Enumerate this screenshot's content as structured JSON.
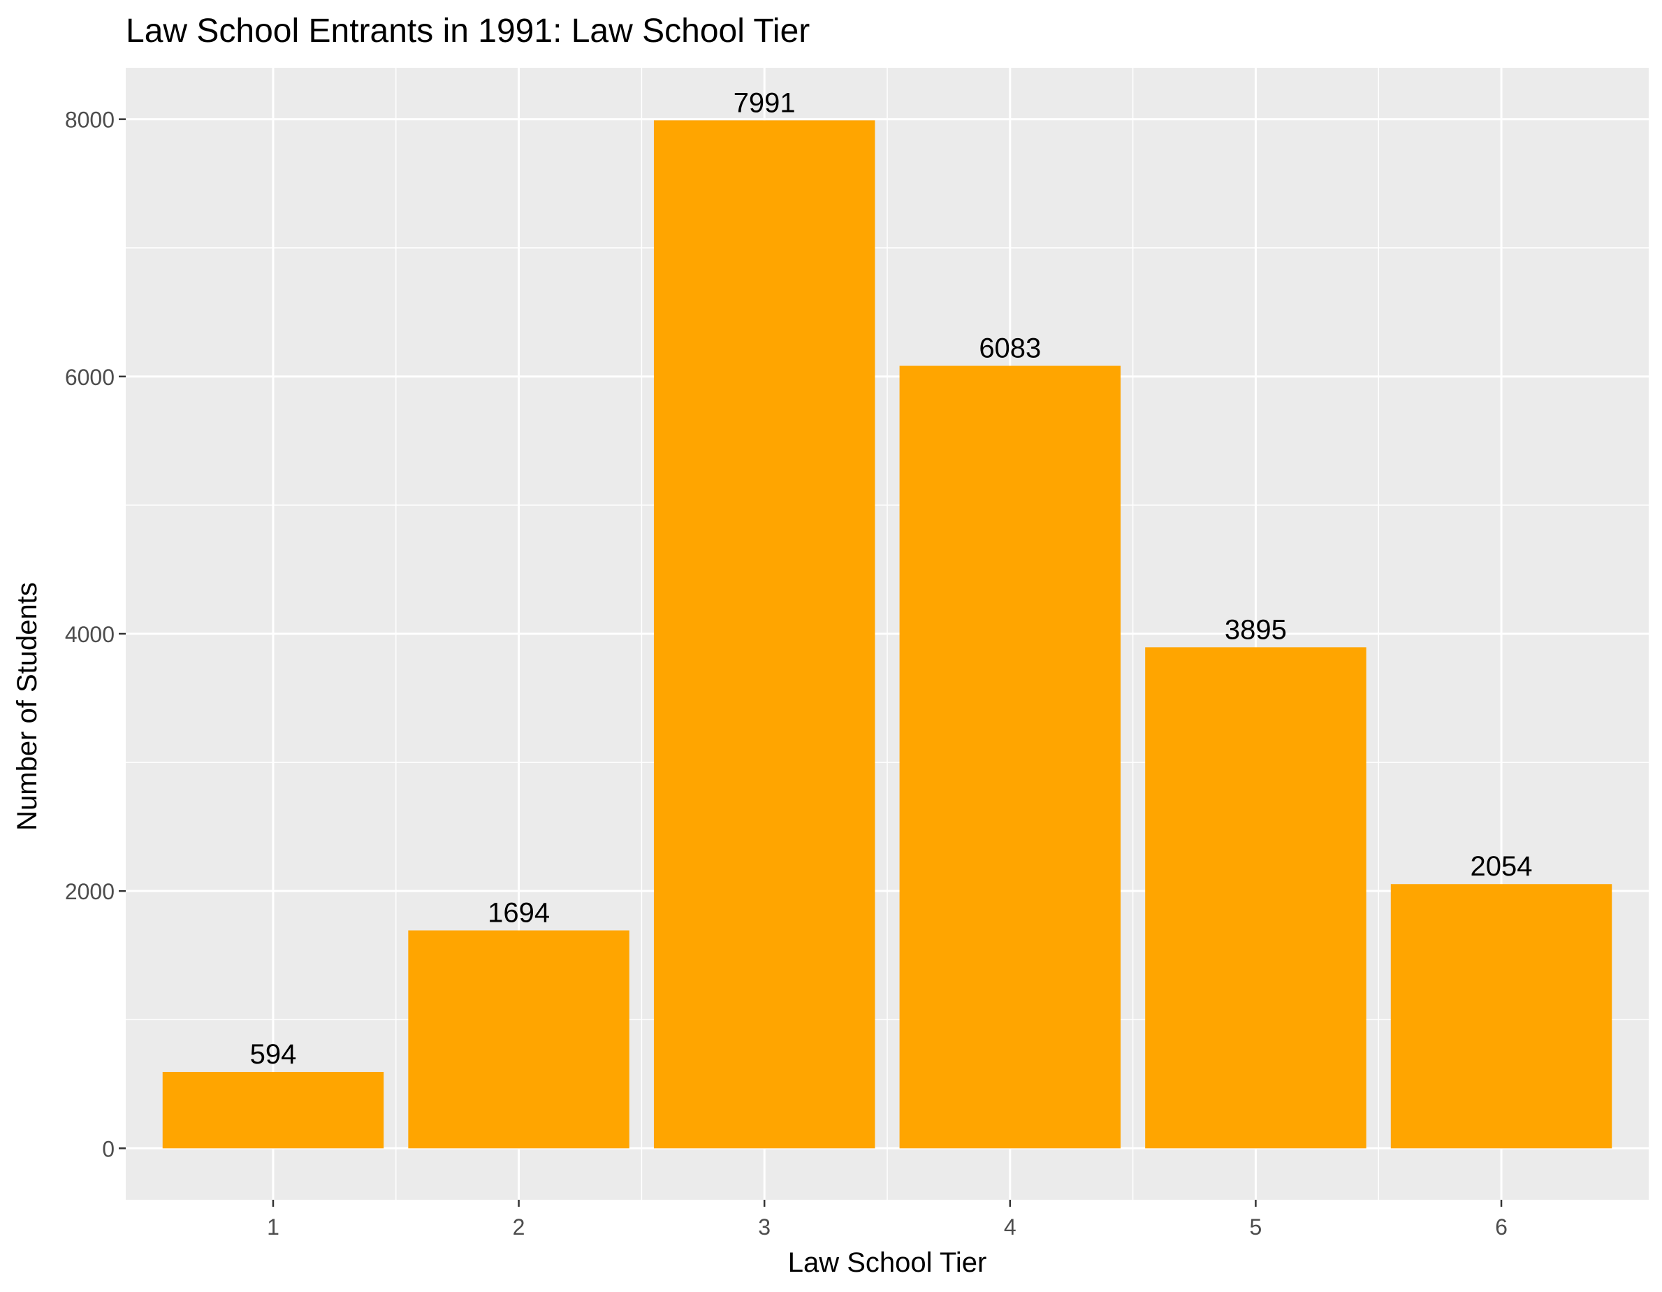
{
  "chart_data": {
    "type": "bar",
    "title": "Law School Entrants in 1991: Law School Tier",
    "xlabel": "Law School Tier",
    "ylabel": "Number of Students",
    "categories": [
      "1",
      "2",
      "3",
      "4",
      "5",
      "6"
    ],
    "values": [
      594,
      1694,
      7991,
      6083,
      3895,
      2054
    ],
    "data_labels": [
      "594",
      "1694",
      "7991",
      "6083",
      "3895",
      "2054"
    ],
    "yticks": [
      0,
      2000,
      4000,
      6000,
      8000
    ],
    "ytick_labels": [
      "0",
      "2000",
      "4000",
      "6000",
      "8000"
    ],
    "ylim": [
      -400,
      8400
    ],
    "grid": true,
    "legend": "none",
    "colors": {
      "bar": "#FFA500",
      "panel": "#EBEBEB",
      "grid": "#FFFFFF",
      "tick_text": "#4D4D4D",
      "text": "#000000"
    }
  }
}
